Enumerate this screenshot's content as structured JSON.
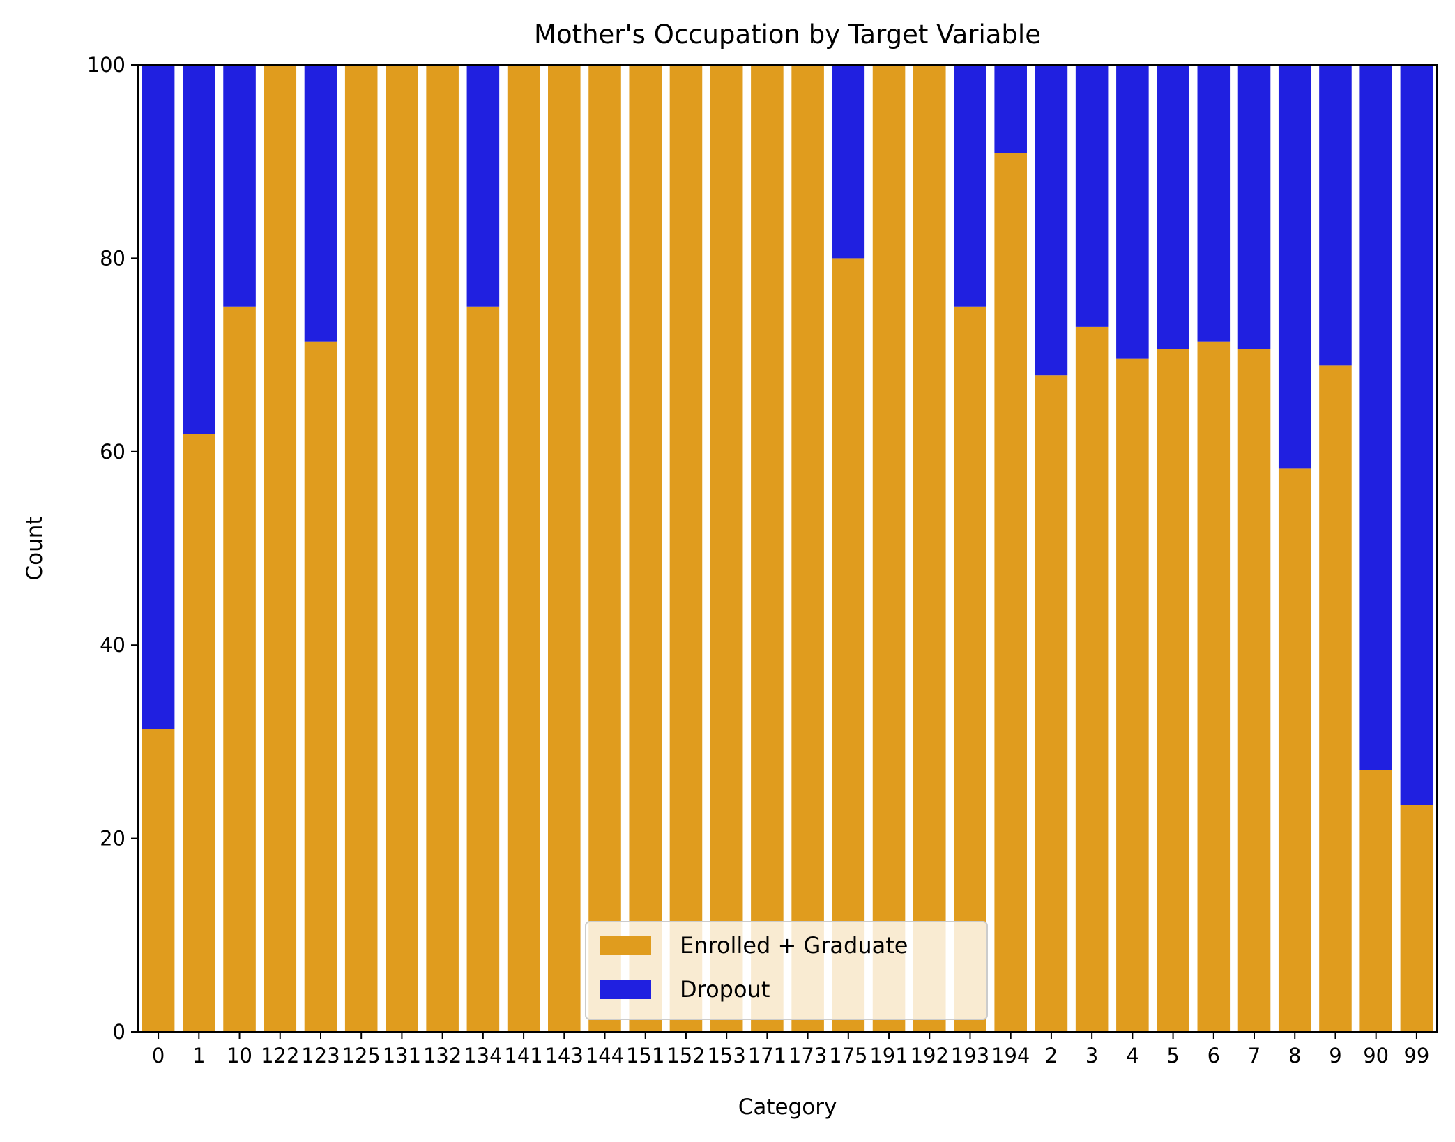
{
  "chart_data": {
    "type": "bar",
    "stacked": true,
    "title": "Mother's Occupation by Target Variable",
    "xlabel": "Category",
    "ylabel": "Count",
    "ylim": [
      0,
      100
    ],
    "yticks": [
      0,
      20,
      40,
      60,
      80,
      100
    ],
    "grid": false,
    "legend_placement": "lower-center",
    "categories": [
      "0",
      "1",
      "10",
      "122",
      "123",
      "125",
      "131",
      "132",
      "134",
      "141",
      "143",
      "144",
      "151",
      "152",
      "153",
      "171",
      "173",
      "175",
      "191",
      "192",
      "193",
      "194",
      "2",
      "3",
      "4",
      "5",
      "6",
      "7",
      "8",
      "9",
      "90",
      "99"
    ],
    "series": [
      {
        "name": "Enrolled + Graduate",
        "color": "#e09c1e",
        "values": [
          31.3,
          61.8,
          75.0,
          100,
          71.4,
          100,
          100,
          100,
          75.0,
          100,
          100,
          100,
          100,
          100,
          100,
          100,
          100,
          80.0,
          100,
          100,
          75.0,
          90.9,
          67.9,
          72.9,
          69.6,
          70.6,
          71.4,
          70.6,
          58.3,
          68.9,
          27.1,
          23.5
        ]
      },
      {
        "name": "Dropout",
        "color": "#2020e0",
        "values": [
          68.7,
          38.2,
          25.0,
          0,
          28.6,
          0,
          0,
          0,
          25.0,
          0,
          0,
          0,
          0,
          0,
          0,
          0,
          0,
          20.0,
          0,
          0,
          25.0,
          9.1,
          32.1,
          27.1,
          30.4,
          29.4,
          28.6,
          29.4,
          41.7,
          31.1,
          72.9,
          76.5
        ]
      }
    ]
  }
}
